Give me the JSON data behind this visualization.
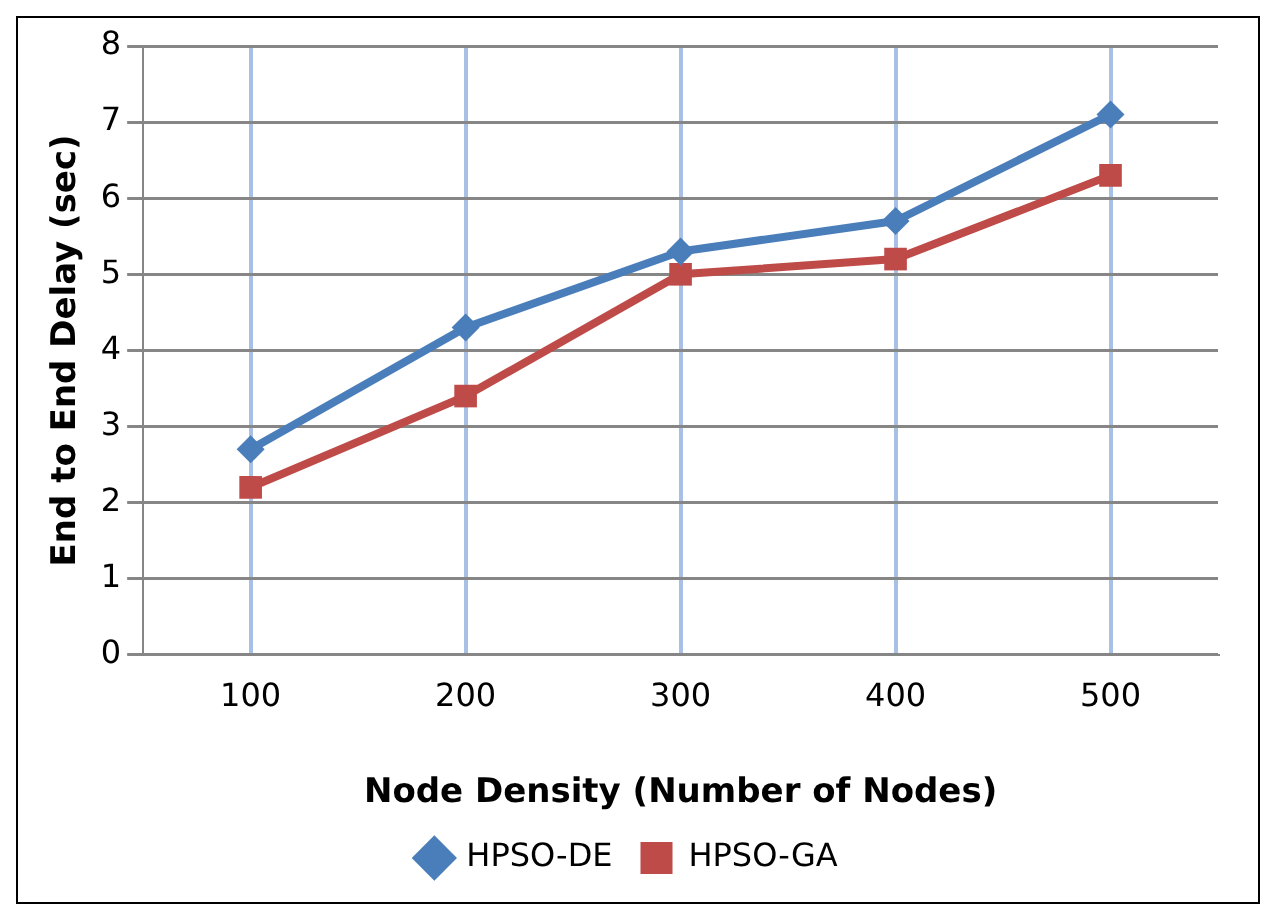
{
  "chart_data": {
    "type": "line",
    "xlabel": "Node Density (Number of Nodes)",
    "ylabel": "End to End Delay (sec)",
    "categories": [
      "100",
      "200",
      "300",
      "400",
      "500"
    ],
    "ylim": [
      0,
      8
    ],
    "yticks": [
      0,
      1,
      2,
      3,
      4,
      5,
      6,
      7,
      8
    ],
    "grid": true,
    "legend": "bottom",
    "series": [
      {
        "name": "HPSO-DE",
        "color": "#4a7ebb",
        "marker": "diamond",
        "values": [
          2.7,
          4.3,
          5.3,
          5.7,
          7.1
        ]
      },
      {
        "name": "HPSO-GA",
        "color": "#be4b48",
        "marker": "square",
        "values": [
          2.2,
          3.4,
          5.0,
          5.2,
          6.3
        ]
      }
    ]
  }
}
